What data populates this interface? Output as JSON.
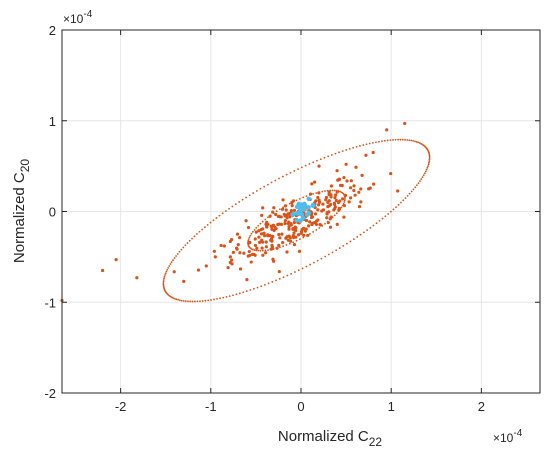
{
  "chart_data": {
    "type": "scatter",
    "xlabel": {
      "base": "Normalized C",
      "sub": "22"
    },
    "ylabel": {
      "base": "Normalized C",
      "sub": "20"
    },
    "x_multiplier": "×10",
    "x_multiplier_exp": "-4",
    "y_multiplier": "×10",
    "y_multiplier_exp": "-4",
    "xlim": [
      -2.65,
      2.65
    ],
    "ylim": [
      -2,
      2
    ],
    "xticks": [
      -2,
      -1,
      0,
      1,
      2
    ],
    "xtick_labels": [
      "-2",
      "-1",
      "0",
      "1",
      "2"
    ],
    "yticks": [
      -2,
      -1,
      0,
      1,
      2
    ],
    "ytick_labels": [
      "-2",
      "-1",
      "0",
      "1",
      "2"
    ],
    "grid": true,
    "colors": {
      "scatter": "#d95319",
      "cluster": "#4dbeee",
      "grid": "#e6e6e6",
      "axis": "#262626"
    },
    "outliers": [
      [
        -2.65,
        -0.98
      ],
      [
        -2.05,
        -0.53
      ],
      [
        -1.82,
        -0.73
      ],
      [
        -1.3,
        -0.77
      ],
      [
        -2.2,
        -0.65
      ],
      [
        1.15,
        0.97
      ],
      [
        0.95,
        0.9
      ],
      [
        0.8,
        0.65
      ],
      [
        0.72,
        0.62
      ],
      [
        0.5,
        0.52
      ],
      [
        0.55,
        0.15
      ],
      [
        0.6,
        0.18
      ],
      [
        -0.75,
        -0.45
      ],
      [
        -0.85,
        -0.38
      ],
      [
        -0.95,
        -0.5
      ],
      [
        -1.05,
        -0.6
      ],
      [
        0.75,
        0.25
      ],
      [
        0.4,
        0.45
      ],
      [
        -0.6,
        -0.75
      ],
      [
        0.2,
        0.5
      ]
    ],
    "cluster_stats": {
      "mean_x": -0.05,
      "mean_y": -0.1,
      "count": 280,
      "major_sd": 0.42,
      "minor_sd": 0.12,
      "angle_deg": 28
    },
    "inner_ellipse": {
      "center": [
        -0.05,
        -0.1
      ],
      "major": 0.6,
      "minor": 0.2,
      "angle_deg": 28
    },
    "outer_ellipse": {
      "center": [
        -0.05,
        -0.1
      ],
      "major": 1.65,
      "minor": 0.5,
      "angle_deg": 28
    },
    "blue_cluster": {
      "center": [
        0.02,
        0.02
      ],
      "count": 25,
      "spread": 0.07
    }
  }
}
